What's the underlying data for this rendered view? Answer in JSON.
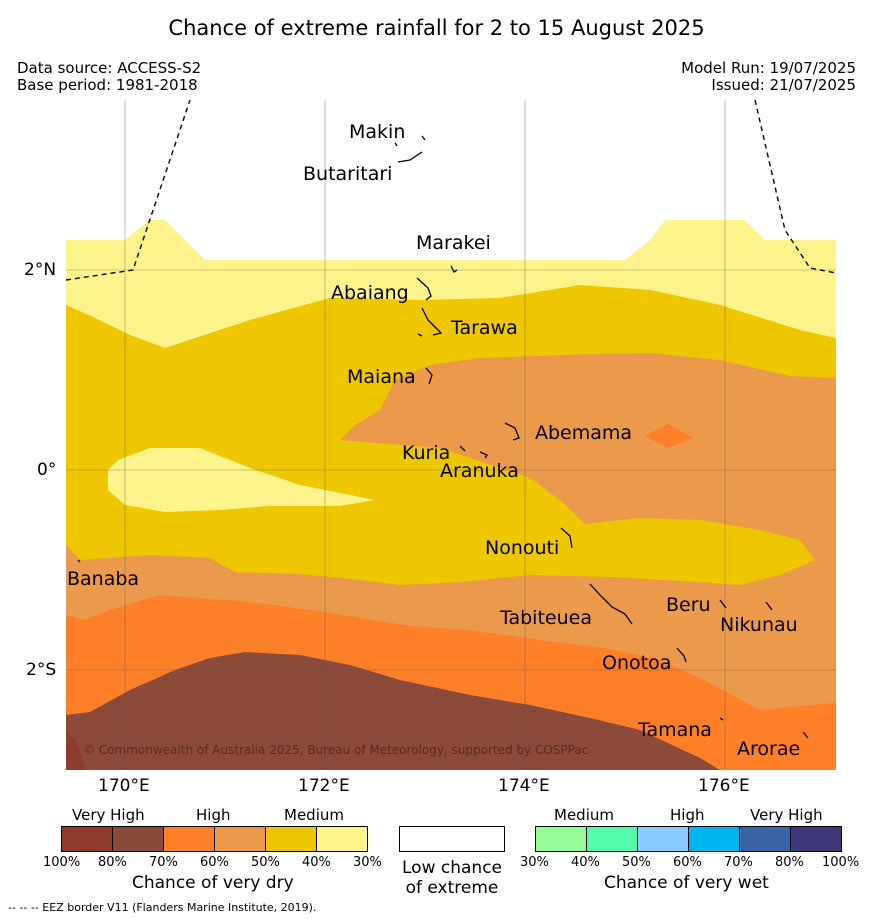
{
  "header": {
    "title": "Chance of extreme rainfall for 2 to 15 August 2025",
    "data_source": "Data source: ACCESS-S2",
    "base_period": "Base period: 1981-2018",
    "model_run": "Model Run: 19/07/2025",
    "issued": "Issued: 21/07/2025"
  },
  "map": {
    "copyright": "© Commonwealth of Australia 2025, Bureau of Meteorology, supported by COSPPac",
    "latitude_labels": [
      "2°N",
      "0°",
      "2°S"
    ],
    "longitude_labels": [
      "170°E",
      "172°E",
      "174°E",
      "176°E"
    ],
    "islands": [
      "Makin",
      "Butaritari",
      "Marakei",
      "Abaiang",
      "Tarawa",
      "Maiana",
      "Abemama",
      "Kuria",
      "Aranuka",
      "Nonouti",
      "Banaba",
      "Tabiteuea",
      "Beru",
      "Nikunau",
      "Onotoa",
      "Tamana",
      "Arorae"
    ],
    "zone_colors": {
      "very_dry_very_high_80_100": "#8b3a2b",
      "very_dry_very_high_70_80": "#8b4a3a",
      "very_dry_high_60_70": "#fd7f28",
      "very_dry_high_50_60": "#eb9a4b",
      "very_dry_medium_40_50": "#eec701",
      "very_dry_medium_30_40": "#fcf38a"
    }
  },
  "legend": {
    "dry": {
      "headers": [
        "Very High",
        "High",
        "Medium"
      ],
      "ticks": [
        "100%",
        "80%",
        "70%",
        "60%",
        "50%",
        "40%",
        "30%"
      ],
      "colors": [
        "#8e3b2b",
        "#8a4a3a",
        "#fd7f28",
        "#eb9a4b",
        "#eec701",
        "#fcf38a"
      ],
      "title": "Chance of very dry"
    },
    "low": {
      "title_line1": "Low chance",
      "title_line2": "of extreme",
      "color": "#ffffff"
    },
    "wet": {
      "headers": [
        "Medium",
        "High",
        "Very High"
      ],
      "ticks": [
        "30%",
        "40%",
        "50%",
        "60%",
        "70%",
        "80%",
        "100%"
      ],
      "colors": [
        "#97fb97",
        "#52fba8",
        "#88ccff",
        "#00b4ef",
        "#3b64a6",
        "#3f3a7c"
      ],
      "title": "Chance of very wet"
    }
  },
  "footer": {
    "eez_note": "--  --  -- EEZ border V11 (Flanders Marine Institute, 2019)."
  }
}
